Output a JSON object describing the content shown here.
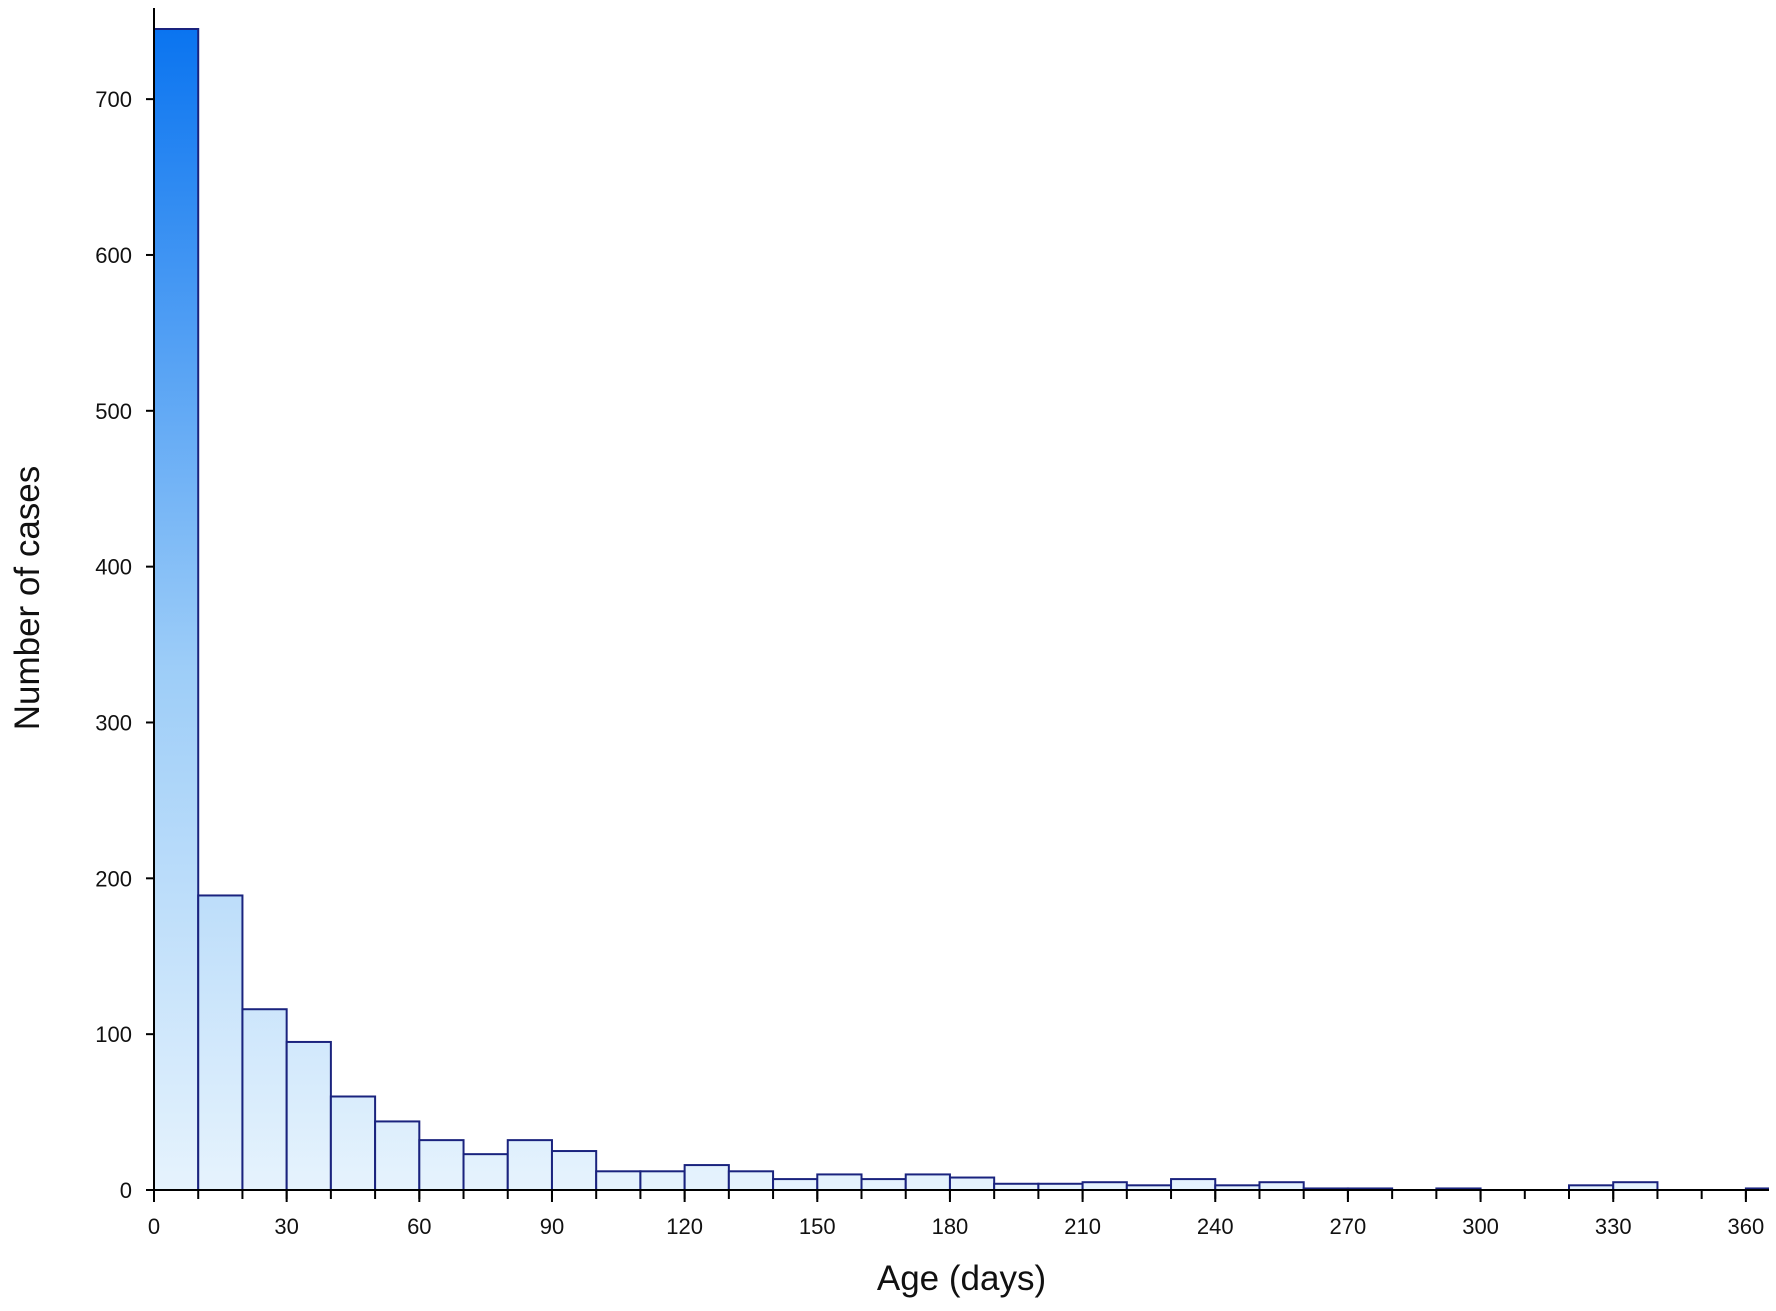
{
  "chart_data": {
    "type": "bar",
    "title": "",
    "xlabel": "Age (days)",
    "ylabel": "Number of cases",
    "bin_width": 10,
    "bins": [
      {
        "start": 0,
        "end": 10,
        "value": 745
      },
      {
        "start": 10,
        "end": 20,
        "value": 189
      },
      {
        "start": 20,
        "end": 30,
        "value": 116
      },
      {
        "start": 30,
        "end": 40,
        "value": 95
      },
      {
        "start": 40,
        "end": 50,
        "value": 60
      },
      {
        "start": 50,
        "end": 60,
        "value": 44
      },
      {
        "start": 60,
        "end": 70,
        "value": 32
      },
      {
        "start": 70,
        "end": 80,
        "value": 23
      },
      {
        "start": 80,
        "end": 90,
        "value": 32
      },
      {
        "start": 90,
        "end": 100,
        "value": 25
      },
      {
        "start": 100,
        "end": 110,
        "value": 12
      },
      {
        "start": 110,
        "end": 120,
        "value": 12
      },
      {
        "start": 120,
        "end": 130,
        "value": 16
      },
      {
        "start": 130,
        "end": 140,
        "value": 12
      },
      {
        "start": 140,
        "end": 150,
        "value": 7
      },
      {
        "start": 150,
        "end": 160,
        "value": 10
      },
      {
        "start": 160,
        "end": 170,
        "value": 7
      },
      {
        "start": 170,
        "end": 180,
        "value": 10
      },
      {
        "start": 180,
        "end": 190,
        "value": 8
      },
      {
        "start": 190,
        "end": 200,
        "value": 4
      },
      {
        "start": 200,
        "end": 210,
        "value": 4
      },
      {
        "start": 210,
        "end": 220,
        "value": 5
      },
      {
        "start": 220,
        "end": 230,
        "value": 3
      },
      {
        "start": 230,
        "end": 240,
        "value": 7
      },
      {
        "start": 240,
        "end": 250,
        "value": 3
      },
      {
        "start": 250,
        "end": 260,
        "value": 5
      },
      {
        "start": 260,
        "end": 270,
        "value": 1
      },
      {
        "start": 270,
        "end": 280,
        "value": 1
      },
      {
        "start": 290,
        "end": 300,
        "value": 1
      },
      {
        "start": 320,
        "end": 330,
        "value": 3
      },
      {
        "start": 330,
        "end": 340,
        "value": 5
      },
      {
        "start": 360,
        "end": 365,
        "value": 1
      }
    ],
    "xlim": [
      0,
      365
    ],
    "ylim": [
      0,
      750
    ],
    "x_ticks": [
      0,
      30,
      60,
      90,
      120,
      150,
      180,
      210,
      240,
      270,
      300,
      330,
      360
    ],
    "x_ticks_minor_step": 10,
    "y_ticks": [
      0,
      100,
      200,
      300,
      400,
      500,
      600,
      700
    ],
    "grid": false,
    "legend": "none",
    "colors": {
      "bar_top": "#0a74f0",
      "bar_bottom": "#e6f3fd",
      "bar_stroke": "#1a237e",
      "axis": "#000000"
    }
  }
}
